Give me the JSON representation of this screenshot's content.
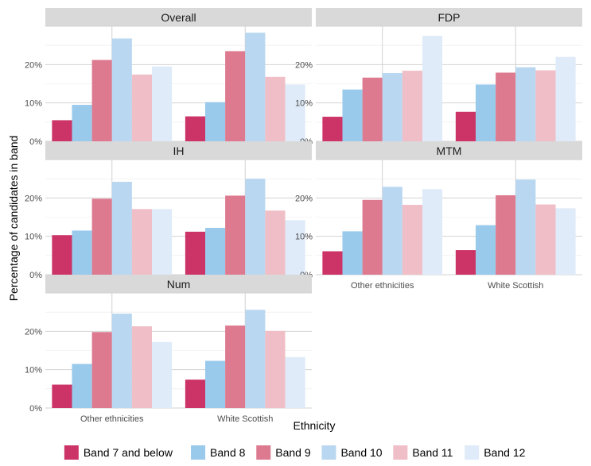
{
  "chart_data": {
    "type": "bar",
    "xlabel": "Ethnicity",
    "ylabel": "Percentage of candidates in band",
    "categories": [
      "Other ethnicities",
      "White Scottish"
    ],
    "ylim": [
      0,
      30
    ],
    "yticks": [
      "0%",
      "10%",
      "20%"
    ],
    "grid": true,
    "legend_position": "bottom",
    "series": [
      {
        "name": "Band 7 and below",
        "color": "#cc3366"
      },
      {
        "name": "Band 8",
        "color": "#99c9eb"
      },
      {
        "name": "Band 9",
        "color": "#dd7a8f"
      },
      {
        "name": "Band 10",
        "color": "#b9d7f0"
      },
      {
        "name": "Band 11",
        "color": "#f0bec6"
      },
      {
        "name": "Band 12",
        "color": "#dfebf8"
      }
    ],
    "panels": [
      {
        "title": "Overall",
        "values": {
          "Other ethnicities": [
            5.5,
            9.5,
            21.2,
            26.8,
            17.4,
            19.5
          ],
          "White Scottish": [
            6.5,
            10.2,
            23.5,
            28.3,
            16.8,
            14.8
          ]
        }
      },
      {
        "title": "FDP",
        "values": {
          "Other ethnicities": [
            6.4,
            13.5,
            16.6,
            17.8,
            18.4,
            27.5
          ],
          "White Scottish": [
            7.7,
            14.8,
            17.9,
            19.3,
            18.5,
            22.0
          ]
        }
      },
      {
        "title": "IH",
        "values": {
          "Other ethnicities": [
            10.3,
            11.5,
            19.8,
            24.2,
            17.1,
            17.1
          ],
          "White Scottish": [
            11.2,
            12.2,
            20.6,
            25.0,
            16.7,
            14.2
          ]
        }
      },
      {
        "title": "MTM",
        "values": {
          "Other ethnicities": [
            6.1,
            11.3,
            19.5,
            22.9,
            18.2,
            22.3
          ],
          "White Scottish": [
            6.4,
            12.9,
            20.7,
            24.8,
            18.3,
            17.3
          ]
        }
      },
      {
        "title": "Num",
        "values": {
          "Other ethnicities": [
            6.1,
            11.5,
            19.8,
            24.6,
            21.3,
            17.2
          ],
          "White Scottish": [
            7.4,
            12.3,
            21.5,
            25.6,
            20.1,
            13.3
          ]
        }
      }
    ]
  }
}
